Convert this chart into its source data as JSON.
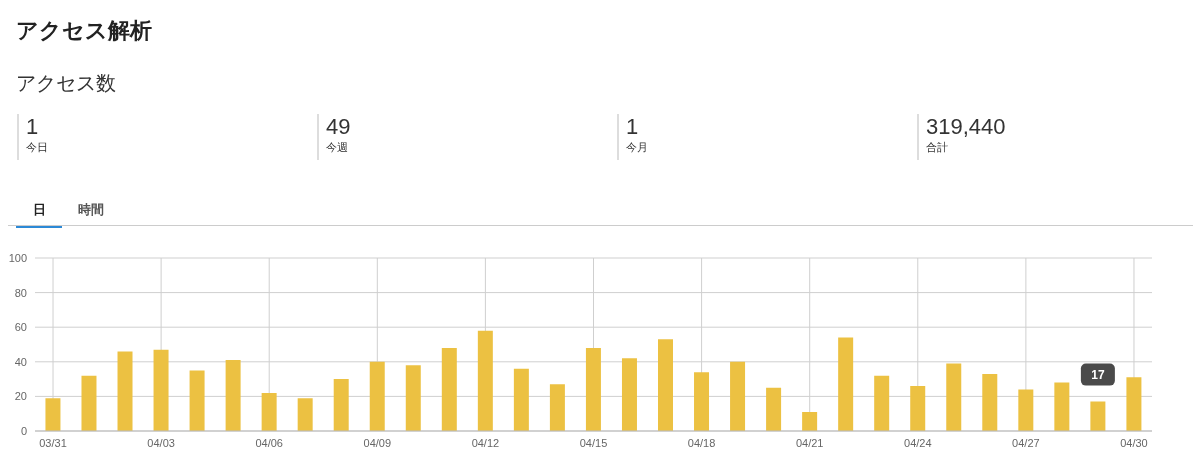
{
  "chart_data": {
    "type": "bar",
    "title": "アクセス解析",
    "subtitle": "アクセス数",
    "annotations": [
      "1",
      "今日",
      "49",
      "今週",
      "1",
      "今月",
      "319,440",
      "合計",
      "日",
      "時間"
    ],
    "categories": [
      "03/31",
      null,
      null,
      "04/03",
      null,
      null,
      "04/06",
      null,
      null,
      "04/09",
      null,
      null,
      "04/12",
      null,
      null,
      "04/15",
      null,
      null,
      "04/18",
      null,
      null,
      "04/21",
      null,
      null,
      "04/24",
      null,
      null,
      "04/27",
      null,
      null,
      "04/30"
    ],
    "values": [
      19,
      32,
      46,
      47,
      35,
      41,
      22,
      19,
      30,
      40,
      38,
      48,
      58,
      36,
      27,
      48,
      42,
      53,
      34,
      40,
      25,
      11,
      54,
      32,
      26,
      39,
      33,
      24,
      28,
      17,
      31
    ],
    "value_labels": [
      null,
      null,
      null,
      null,
      null,
      null,
      null,
      null,
      null,
      null,
      null,
      null,
      null,
      null,
      null,
      null,
      null,
      null,
      null,
      null,
      null,
      null,
      null,
      null,
      null,
      null,
      null,
      null,
      null,
      "17",
      null
    ],
    "color": "#ecc142",
    "ylim": [
      0,
      100
    ],
    "yticks": [
      0,
      20,
      40,
      60,
      80,
      100
    ],
    "grid": true,
    "legend": false
  }
}
